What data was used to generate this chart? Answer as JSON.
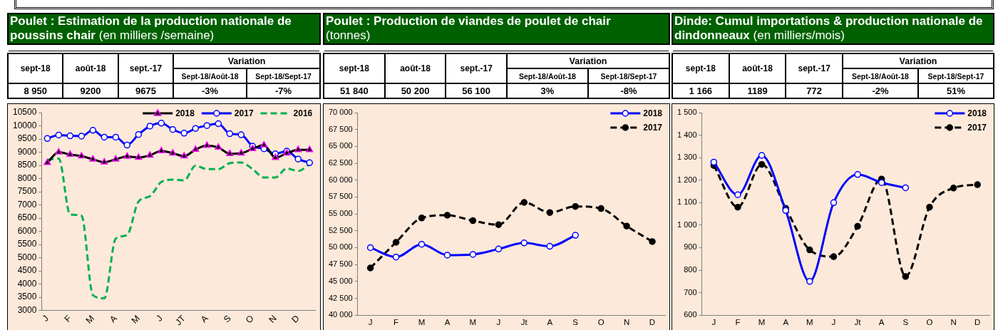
{
  "chart_data": [
    {
      "type": "other",
      "title": "Poulet : Estimation de la production nationale de poussins chair (en milliers /semaine)",
      "categories": [
        "sept-18",
        "août-18",
        "sept.-17",
        "Sept-18/Août-18",
        "Sept-18/Sept-17"
      ],
      "value_labels": [
        "8 950",
        "9200",
        "9675",
        "-3%",
        "-7%"
      ],
      "annotations": [
        "Variation"
      ]
    },
    {
      "type": "line",
      "categories": [
        "J",
        null,
        "F",
        null,
        "M",
        null,
        "A",
        null,
        "M",
        null,
        "J",
        null,
        "JT",
        null,
        "A",
        null,
        "S",
        null,
        "O",
        null,
        "N",
        null,
        "D",
        null
      ],
      "series": [
        {
          "name": "2018",
          "color": "#000000",
          "marker": "triangle",
          "line_style": "solid",
          "values": [
            8600,
            9000,
            8910,
            8850,
            8730,
            8620,
            8730,
            8840,
            8800,
            8880,
            9050,
            8960,
            8850,
            9100,
            9250,
            9180,
            8940,
            8960,
            9130,
            9270,
            8790,
            8960,
            9090,
            9090
          ]
        },
        {
          "name": "2017",
          "color": "#0000ff",
          "marker": "circle",
          "line_style": "solid",
          "values": [
            9520,
            9650,
            9620,
            9610,
            9830,
            9570,
            9570,
            9270,
            9670,
            9990,
            10100,
            9860,
            9720,
            9900,
            10010,
            10080,
            9700,
            9660,
            9230,
            9130,
            8940,
            9040,
            8740,
            8600
          ]
        },
        {
          "name": "2016",
          "color": "#00b050",
          "marker": "none",
          "line_style": "dashed",
          "values": [
            8710,
            8760,
            6640,
            6590,
            3580,
            3460,
            5720,
            5860,
            7130,
            7330,
            7870,
            7960,
            7930,
            8490,
            8360,
            8360,
            8580,
            8610,
            8360,
            8040,
            8040,
            8380,
            8290,
            8540
          ]
        }
      ],
      "ylim": [
        3000,
        10500
      ],
      "yticks": [
        3000,
        3500,
        4000,
        4500,
        5000,
        5500,
        6000,
        6500,
        7000,
        7500,
        8000,
        8500,
        9000,
        9500,
        10000,
        10500
      ],
      "legend": "top right"
    },
    {
      "type": "other",
      "title": "Poulet : Production de viandes de poulet de chair (tonnes)",
      "categories": [
        "sept-18",
        "août-18",
        "sept.-17",
        "Sept-18/Août-18",
        "Sept-18/Sept-17"
      ],
      "value_labels": [
        "51 840",
        "50 200",
        "56 100",
        "3%",
        "-8%"
      ],
      "annotations": [
        "Variation"
      ]
    },
    {
      "type": "line",
      "categories": [
        "J",
        "F",
        "M",
        "A",
        "M",
        "J",
        "Jt",
        "A",
        "S",
        "O",
        "N",
        "D"
      ],
      "series": [
        {
          "name": "2018",
          "color": "#0000ff",
          "marker": "circle",
          "line_style": "solid",
          "values": [
            50000,
            48600,
            50500,
            48900,
            49000,
            49800,
            50700,
            50200,
            51840,
            null,
            null,
            null
          ]
        },
        {
          "name": "2017",
          "color": "#000000",
          "marker": "circle",
          "line_style": "dashed",
          "values": [
            47000,
            50800,
            54400,
            54800,
            54000,
            53400,
            56700,
            55200,
            56100,
            55800,
            53200,
            50900
          ]
        }
      ],
      "ylim": [
        40000,
        70000
      ],
      "yticks": [
        {
          "value": 40000,
          "label": "40 000"
        },
        {
          "value": 42500,
          "label": "42 500"
        },
        {
          "value": 45000,
          "label": "45 000"
        },
        {
          "value": 47500,
          "label": "47 500"
        },
        {
          "value": 50000,
          "label": "50 000"
        },
        {
          "value": 52500,
          "label": "52 500"
        },
        {
          "value": 55000,
          "label": "55 000"
        },
        {
          "value": 57500,
          "label": "57 500"
        },
        {
          "value": 60000,
          "label": "60 000"
        },
        {
          "value": 62500,
          "label": "62 500"
        },
        {
          "value": 65000,
          "label": "65 000"
        },
        {
          "value": 67500,
          "label": "67 500"
        },
        {
          "value": 70000,
          "label": "70 000"
        }
      ],
      "legend": "top right"
    },
    {
      "type": "other",
      "title": "Dinde: Cumul importations & production nationale de dindonneaux (en milliers/mois)",
      "categories": [
        "sept-18",
        "août-18",
        "sept.-17",
        "Sept-18/Août-18",
        "Sept-18/Sept-17"
      ],
      "value_labels": [
        "1 166",
        "1189",
        "772",
        "-2%",
        "51%"
      ],
      "annotations": [
        "Variation"
      ]
    },
    {
      "type": "line",
      "categories": [
        "J",
        "F",
        "M",
        "A",
        "M",
        "J",
        "Jt",
        "A",
        "S",
        "O",
        "N",
        "D"
      ],
      "series": [
        {
          "name": "2018",
          "color": "#0000ff",
          "marker": "circle",
          "line_style": "solid",
          "values": [
            1280,
            1135,
            1310,
            1065,
            750,
            1100,
            1225,
            1189,
            1166,
            null,
            null,
            null
          ]
        },
        {
          "name": "2017",
          "color": "#000000",
          "marker": "circle",
          "line_style": "dashed",
          "values": [
            1265,
            1080,
            1270,
            1075,
            890,
            860,
            995,
            1205,
            772,
            1080,
            1165,
            1180
          ]
        }
      ],
      "ylim": [
        600,
        1500
      ],
      "yticks": [
        600,
        700,
        800,
        900,
        {
          "value": 1000,
          "label": "1 000"
        },
        {
          "value": 1100,
          "label": "1 100"
        },
        {
          "value": 1200,
          "label": "1 200"
        },
        {
          "value": 1300,
          "label": "1 300"
        },
        {
          "value": 1400,
          "label": "1 400"
        },
        {
          "value": 1500,
          "label": "1 500"
        }
      ],
      "legend": "top right"
    }
  ]
}
